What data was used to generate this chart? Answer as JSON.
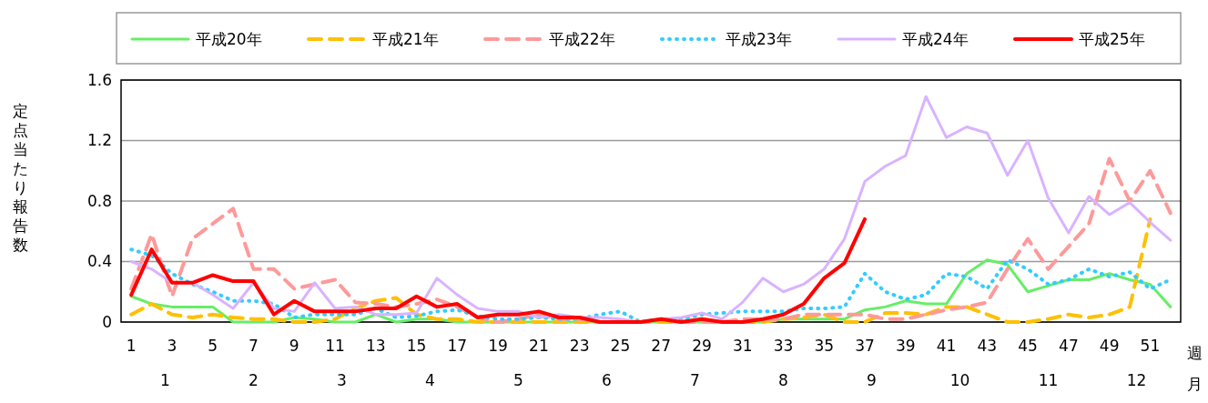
{
  "chart_data": {
    "type": "line",
    "xlabel": "週",
    "ylabel": "定点当たり報告数",
    "x2label": "月",
    "x2lim": [
      0.5,
      12.5
    ],
    "x2ticks": [
      1,
      2,
      3,
      4,
      5,
      6,
      7,
      8,
      9,
      10,
      11,
      12
    ],
    "x": [
      1,
      2,
      3,
      4,
      5,
      6,
      7,
      8,
      9,
      10,
      11,
      12,
      13,
      14,
      15,
      16,
      17,
      18,
      19,
      20,
      21,
      22,
      23,
      24,
      25,
      26,
      27,
      28,
      29,
      30,
      31,
      32,
      33,
      34,
      35,
      36,
      37,
      38,
      39,
      40,
      41,
      42,
      43,
      44,
      45,
      46,
      47,
      48,
      49,
      50,
      51,
      52
    ],
    "xlim": [
      0.5,
      52.5
    ],
    "xticks": [
      1,
      3,
      5,
      7,
      9,
      11,
      13,
      15,
      17,
      19,
      21,
      23,
      25,
      27,
      29,
      31,
      33,
      35,
      37,
      39,
      41,
      43,
      45,
      47,
      49,
      51
    ],
    "ylim": [
      0,
      1.6
    ],
    "yticks": [
      0,
      0.4,
      0.8,
      1.2,
      1.6
    ],
    "grid": "y",
    "legend": "top",
    "series": [
      {
        "name": "平成20年",
        "color": "#66ee66",
        "line_style": "solid",
        "values": [
          0.17,
          0.12,
          0.1,
          0.1,
          0.1,
          0.0,
          0.0,
          0.0,
          0.03,
          0.02,
          0.0,
          0.0,
          0.05,
          0.0,
          0.02,
          0.02,
          0.0,
          0.0,
          0.0,
          0.0,
          0.0,
          0.0,
          0.0,
          0.0,
          0.0,
          0.0,
          0.0,
          0.0,
          0.0,
          0.0,
          0.0,
          0.0,
          0.02,
          0.02,
          0.02,
          0.02,
          0.08,
          0.1,
          0.14,
          0.12,
          0.12,
          0.32,
          0.41,
          0.38,
          0.2,
          0.24,
          0.28,
          0.28,
          0.32,
          0.28,
          0.25,
          0.1
        ]
      },
      {
        "name": "平成21年",
        "color": "#ffc000",
        "line_style": "dashed",
        "values": [
          0.05,
          0.12,
          0.05,
          0.03,
          0.05,
          0.03,
          0.02,
          0.02,
          0.0,
          0.0,
          0.02,
          0.09,
          0.14,
          0.16,
          0.05,
          0.02,
          0.02,
          0.0,
          0.0,
          0.0,
          0.0,
          0.0,
          0.0,
          0.0,
          0.0,
          0.0,
          0.0,
          0.0,
          0.02,
          0.0,
          0.0,
          0.0,
          0.02,
          0.03,
          0.05,
          0.0,
          0.0,
          0.06,
          0.06,
          0.05,
          0.1,
          0.1,
          0.05,
          0.0,
          0.0,
          0.02,
          0.05,
          0.03,
          0.05,
          0.1,
          0.68,
          null
        ]
      },
      {
        "name": "平成22年",
        "color": "#ff9999",
        "line_style": "dashed",
        "values": [
          0.22,
          0.58,
          0.17,
          0.55,
          0.65,
          0.75,
          0.35,
          0.35,
          0.22,
          0.25,
          0.28,
          0.13,
          0.12,
          0.1,
          0.12,
          0.15,
          0.1,
          0.03,
          0.0,
          0.02,
          0.05,
          0.02,
          0.02,
          0.0,
          0.0,
          0.0,
          0.02,
          0.0,
          0.0,
          0.0,
          0.02,
          0.02,
          0.02,
          0.05,
          0.05,
          0.05,
          0.05,
          0.02,
          0.02,
          0.05,
          0.08,
          0.1,
          0.13,
          0.35,
          0.55,
          0.35,
          0.5,
          0.65,
          1.08,
          0.8,
          1.0,
          0.72
        ]
      },
      {
        "name": "平成23年",
        "color": "#33ccff",
        "line_style": "dotted",
        "values": [
          0.48,
          0.44,
          0.32,
          0.25,
          0.2,
          0.14,
          0.14,
          0.12,
          0.03,
          0.05,
          0.05,
          0.05,
          0.09,
          0.03,
          0.04,
          0.07,
          0.08,
          0.04,
          0.02,
          0.02,
          0.03,
          0.02,
          0.02,
          0.05,
          0.07,
          0.0,
          0.02,
          0.02,
          0.05,
          0.06,
          0.07,
          0.07,
          0.07,
          0.09,
          0.09,
          0.1,
          0.32,
          0.2,
          0.15,
          0.18,
          0.32,
          0.3,
          0.22,
          0.41,
          0.35,
          0.25,
          0.28,
          0.35,
          0.3,
          0.33,
          0.22,
          0.28
        ]
      },
      {
        "name": "平成24年",
        "color": "#d9b3ff",
        "line_style": "solid",
        "values": [
          0.4,
          0.35,
          0.26,
          0.26,
          0.18,
          0.09,
          0.26,
          0.09,
          0.07,
          0.26,
          0.09,
          0.1,
          0.05,
          0.05,
          0.06,
          0.29,
          0.18,
          0.09,
          0.07,
          0.07,
          0.03,
          0.05,
          0.03,
          0.03,
          0.02,
          0.0,
          0.02,
          0.03,
          0.06,
          0.02,
          0.13,
          0.29,
          0.2,
          0.25,
          0.35,
          0.55,
          0.93,
          1.03,
          1.1,
          1.49,
          1.22,
          1.29,
          1.25,
          0.97,
          1.2,
          0.82,
          0.59,
          0.83,
          0.71,
          0.79,
          0.66,
          0.54
        ]
      },
      {
        "name": "平成25年",
        "color": "#ff0000",
        "line_style": "solid",
        "values": [
          0.18,
          0.48,
          0.26,
          0.26,
          0.31,
          0.27,
          0.27,
          0.05,
          0.14,
          0.07,
          0.07,
          0.07,
          0.09,
          0.09,
          0.17,
          0.1,
          0.12,
          0.03,
          0.05,
          0.05,
          0.07,
          0.03,
          0.03,
          0.0,
          0.0,
          0.0,
          0.02,
          0.0,
          0.02,
          0.0,
          0.0,
          0.02,
          0.05,
          0.12,
          0.29,
          0.39,
          0.68,
          null,
          null,
          null,
          null,
          null,
          null,
          null,
          null,
          null,
          null,
          null,
          null,
          null,
          null,
          null
        ]
      }
    ]
  }
}
